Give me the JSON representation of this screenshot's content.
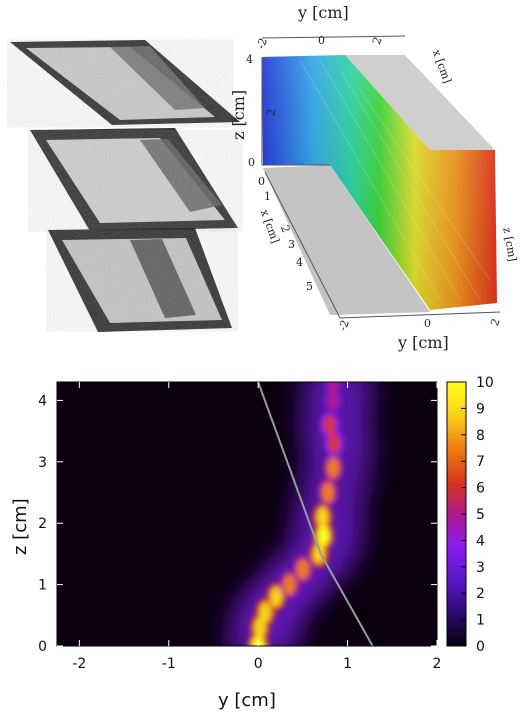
{
  "chart_data": [
    {
      "type": "image",
      "panel": "photographs",
      "count": 3
    },
    {
      "type": "surface3d",
      "panel": "surface",
      "axis_labels": {
        "y_top": "y [cm]",
        "y_bottom": "y [cm]",
        "z": "z [cm]",
        "x": "x [cm]",
        "x_back": "x [cm]",
        "z_right": "z [cm]"
      },
      "z_ticks": [
        "0",
        "2",
        "4"
      ],
      "y_ticks_top": [
        "-2",
        "0",
        "2"
      ],
      "y_ticks_bottom": [
        "-2",
        "0",
        "2"
      ],
      "x_ticks": [
        "0",
        "1",
        "2",
        "3",
        "4",
        "5"
      ],
      "colormap": [
        "#1b2fd6",
        "#2aa3e6",
        "#27d0a0",
        "#3bd636",
        "#e4e22c",
        "#f29a1e",
        "#e2321b"
      ]
    },
    {
      "type": "heatmap",
      "panel": "density",
      "xlabel": "y  [cm]",
      "ylabel": "z  [cm]",
      "xlim": [
        -2.25,
        2
      ],
      "ylim": [
        0,
        4.3
      ],
      "xticks": [
        "-2",
        "-1",
        "0",
        "1",
        "2"
      ],
      "yticks": [
        "0",
        "1",
        "2",
        "3",
        "4"
      ],
      "colorbar": {
        "min": 0,
        "max": 10,
        "ticks": [
          "0",
          "1",
          "2",
          "3",
          "4",
          "5",
          "6",
          "7",
          "8",
          "9",
          "10"
        ],
        "colors": [
          "#05000b",
          "#2a0a6b",
          "#5a16c8",
          "#8a1ef0",
          "#b21890",
          "#d8351c",
          "#f07d10",
          "#fbd41a",
          "#ffff20"
        ]
      },
      "ridge_path": [
        {
          "y": 0.0,
          "z": 0.0
        },
        {
          "y": 0.02,
          "z": 0.3
        },
        {
          "y": 0.08,
          "z": 0.55
        },
        {
          "y": 0.2,
          "z": 0.8
        },
        {
          "y": 0.35,
          "z": 1.0
        },
        {
          "y": 0.5,
          "z": 1.25
        },
        {
          "y": 0.68,
          "z": 1.5
        },
        {
          "y": 0.73,
          "z": 1.8
        },
        {
          "y": 0.72,
          "z": 2.1
        },
        {
          "y": 0.78,
          "z": 2.5
        },
        {
          "y": 0.84,
          "z": 2.9
        },
        {
          "y": 0.85,
          "z": 3.3
        },
        {
          "y": 0.8,
          "z": 3.6
        },
        {
          "y": 0.84,
          "z": 4.0
        },
        {
          "y": 0.84,
          "z": 4.3
        }
      ],
      "ridge_intensity": [
        10,
        9,
        8.8,
        8.5,
        8,
        7.8,
        8.8,
        9.7,
        8.6,
        7.6,
        7,
        6.4,
        6,
        5.6,
        5.5
      ],
      "guide_line": [
        {
          "y": 0.0,
          "z": 4.3
        },
        {
          "y": 0.7,
          "z": 1.5
        },
        {
          "y": 1.28,
          "z": 0.0
        }
      ]
    }
  ]
}
